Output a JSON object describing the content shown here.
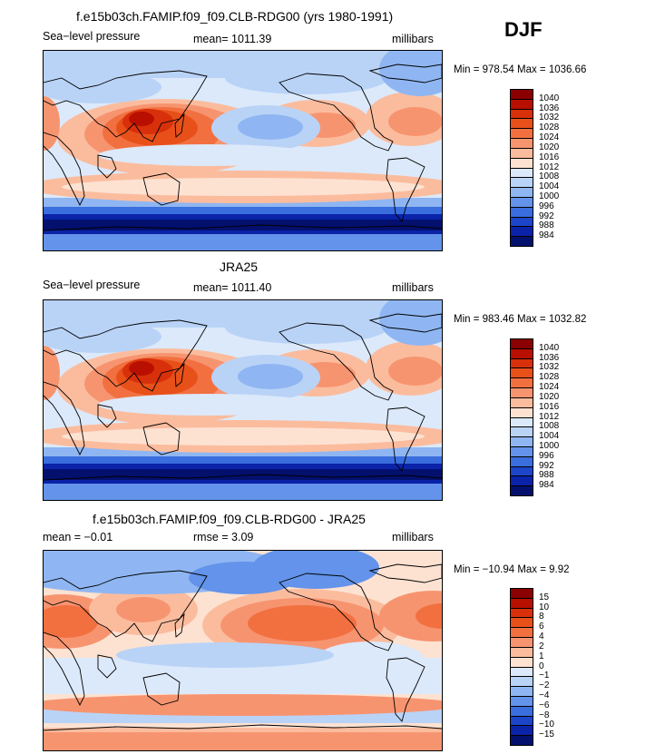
{
  "season": "DJF",
  "panels": [
    {
      "title": "f.e15b03ch.FAMIP.f09_f09.CLB-RDG00 (yrs 1980-1991)",
      "left_label": "Sea−level pressure",
      "center_label": "mean=  1011.39",
      "right_label": "millibars",
      "minmax": "Min = 978.54  Max = 1036.66",
      "kind": "field",
      "colorbar_labels": [
        "1040",
        "1036",
        "1032",
        "1028",
        "1024",
        "1020",
        "1016",
        "1012",
        "1008",
        "1004",
        "1000",
        "996",
        "992",
        "988",
        "984"
      ]
    },
    {
      "title": "JRA25",
      "left_label": "Sea−level pressure",
      "center_label": "mean=  1011.40",
      "right_label": "millibars",
      "minmax": "Min = 983.46  Max = 1032.82",
      "kind": "field",
      "colorbar_labels": [
        "1040",
        "1036",
        "1032",
        "1028",
        "1024",
        "1020",
        "1016",
        "1012",
        "1008",
        "1004",
        "1000",
        "996",
        "992",
        "988",
        "984"
      ]
    },
    {
      "title": "f.e15b03ch.FAMIP.f09_f09.CLB-RDG00 - JRA25",
      "left_label": "mean =   −0.01",
      "center_label": "rmse =     3.09",
      "right_label": "millibars",
      "minmax": "Min = −10.94  Max =    9.92",
      "kind": "diff",
      "colorbar_labels": [
        "15",
        "10",
        "8",
        "6",
        "4",
        "2",
        "1",
        "0",
        "−1",
        "−2",
        "−4",
        "−6",
        "−8",
        "−10",
        "−15"
      ]
    }
  ],
  "colors": {
    "palette": [
      "#8b0000",
      "#b80f00",
      "#d8300a",
      "#e8501a",
      "#f27040",
      "#f79470",
      "#fbbc9e",
      "#fde2d2",
      "#dce9fa",
      "#b9d3f7",
      "#8fb6f2",
      "#6393ea",
      "#3a6ddd",
      "#1d45c9",
      "#0a23a8",
      "#03106e"
    ],
    "coast": "#000000"
  }
}
